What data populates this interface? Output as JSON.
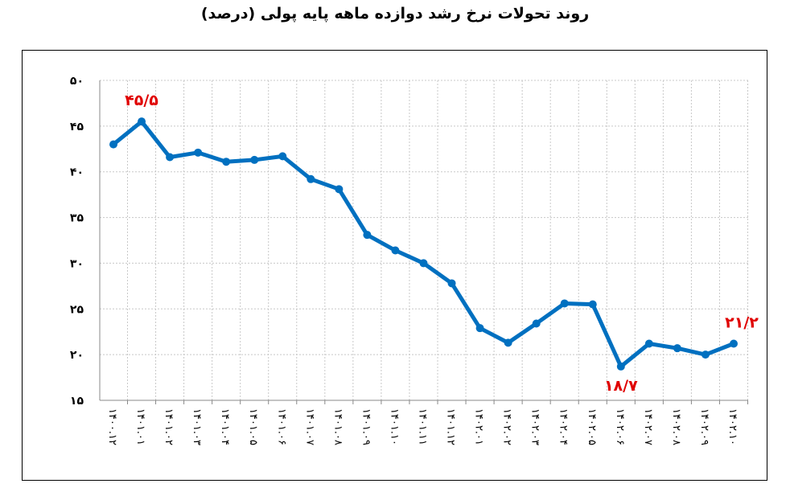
{
  "chart_data": {
    "type": "line",
    "title": "روند تحولات نرخ رشد دوازده ماهه پایه پولی (درصد)",
    "xlabel": "",
    "ylabel": "",
    "ylim": [
      15,
      50
    ],
    "yticks": [
      15,
      20,
      25,
      30,
      35,
      40,
      45,
      50
    ],
    "ytick_labels": [
      "۱۵",
      "۲۰",
      "۲۵",
      "۳۰",
      "۳۵",
      "۴۰",
      "۴۵",
      "۵۰"
    ],
    "grid": true,
    "categories": [
      "۱۴۰۰.۱۲",
      "۱۴۰۱.۰۱",
      "۱۴۰۱.۰۲",
      "۱۴۰۱.۰۳",
      "۱۴۰۱.۰۴",
      "۱۴۰۱.۰۵",
      "۱۴۰۱.۰۶",
      "۱۴۰۱.۰۷",
      "۱۴۰۱.۰۸",
      "۱۴۰۱.۰۹",
      "۱۴۰۱.۱۰",
      "۱۴۰۱.۱۱",
      "۱۴۰۱.۱۲",
      "۱۴۰۲.۰۱",
      "۱۴۰۲.۰۲",
      "۱۴۰۲.۰۳",
      "۱۴۰۲.۰۴",
      "۱۴۰۲.۰۵",
      "۱۴۰۲.۰۶",
      "۱۴۰۲.۰۷",
      "۱۴۰۲.۰۸",
      "۱۴۰۲.۰۹",
      "۱۴۰۲.۱۰"
    ],
    "values": [
      43.0,
      45.5,
      41.6,
      42.1,
      41.1,
      41.3,
      41.7,
      39.2,
      38.1,
      33.1,
      31.4,
      30.0,
      27.8,
      22.9,
      21.3,
      23.4,
      25.6,
      25.5,
      18.7,
      21.2,
      20.7,
      20.0,
      21.2
    ],
    "annotations": [
      {
        "index": 1,
        "text": "۴۵/۵"
      },
      {
        "index": 18,
        "text": "۱۸/۷"
      },
      {
        "index": 22,
        "text": "۲۱/۲"
      }
    ],
    "line_color": "#0070C0",
    "annotation_color": "#E00000"
  }
}
